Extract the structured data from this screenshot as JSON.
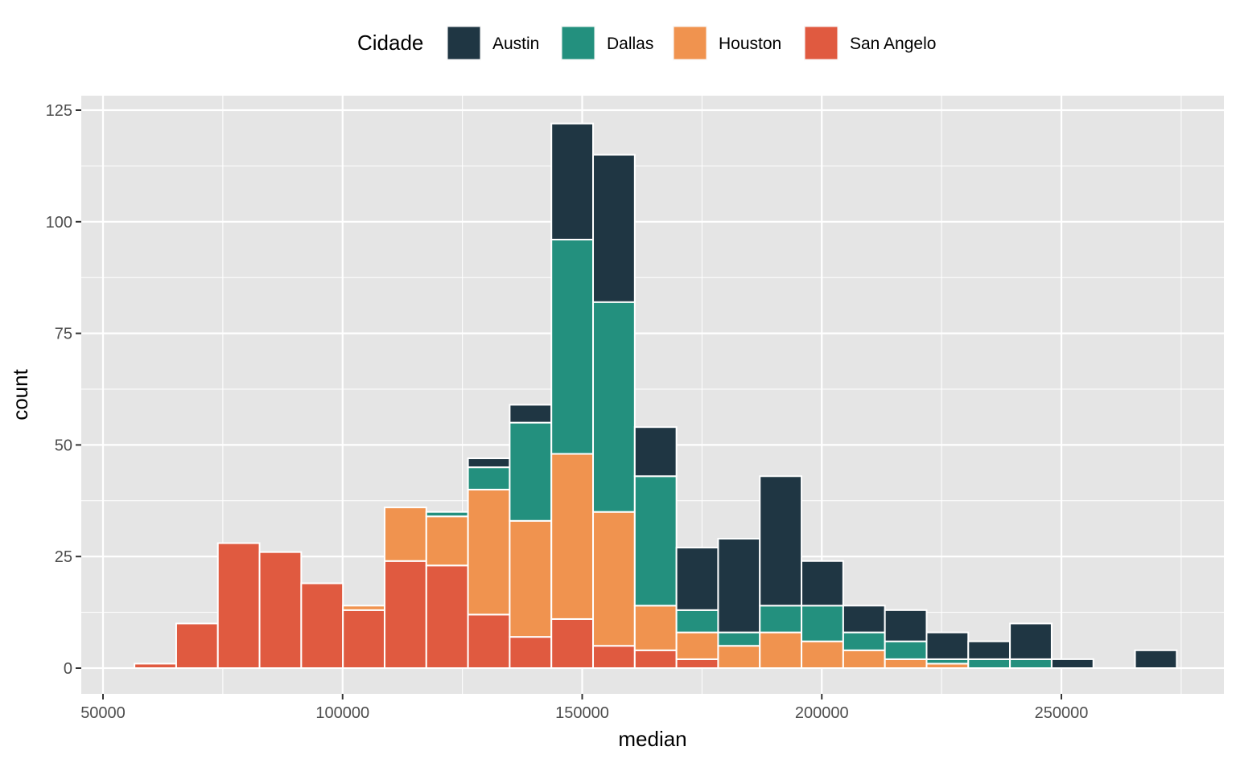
{
  "chart_data": {
    "type": "bar",
    "stacked": true,
    "xlabel": "median",
    "ylabel": "count",
    "xlim": [
      45000,
      282000
    ],
    "ylim": [
      -5,
      128
    ],
    "x_ticks": [
      50000,
      100000,
      150000,
      200000,
      250000
    ],
    "x_tick_labels": [
      "50000",
      "100000",
      "150000",
      "200000",
      "250000"
    ],
    "y_ticks": [
      0,
      25,
      50,
      75,
      100,
      125
    ],
    "y_tick_labels": [
      "0",
      "25",
      "50",
      "75",
      "100",
      "125"
    ],
    "grid": true,
    "legend": {
      "title": "Cidade",
      "position": "top"
    },
    "bin_width": 8700,
    "bin_centers": [
      60920,
      69620,
      78320,
      87020,
      95720,
      104420,
      113120,
      121820,
      130520,
      139220,
      147920,
      156620,
      165320,
      174020,
      182720,
      191420,
      200120,
      208820,
      217520,
      226220,
      234920,
      243620,
      252320,
      261020,
      269720
    ],
    "series": [
      {
        "name": "San Angelo",
        "color": "#E05A40",
        "values": [
          1,
          10,
          28,
          26,
          19,
          13,
          24,
          23,
          12,
          7,
          11,
          5,
          4,
          2,
          0,
          0,
          0,
          0,
          0,
          0,
          0,
          0,
          0,
          0,
          0
        ]
      },
      {
        "name": "Houston",
        "color": "#F0934F",
        "values": [
          0,
          0,
          0,
          0,
          0,
          1,
          12,
          11,
          28,
          26,
          37,
          30,
          10,
          6,
          5,
          8,
          6,
          4,
          2,
          1,
          0,
          0,
          0,
          0,
          0
        ]
      },
      {
        "name": "Dallas",
        "color": "#23907E",
        "values": [
          0,
          0,
          0,
          0,
          0,
          0,
          0,
          1,
          5,
          22,
          48,
          47,
          29,
          5,
          3,
          6,
          8,
          4,
          4,
          1,
          2,
          2,
          0,
          0,
          0
        ]
      },
      {
        "name": "Austin",
        "color": "#1F3643",
        "values": [
          0,
          0,
          0,
          0,
          0,
          0,
          0,
          0,
          2,
          4,
          26,
          33,
          11,
          14,
          21,
          29,
          10,
          6,
          7,
          6,
          4,
          8,
          2,
          0,
          4
        ]
      }
    ],
    "legend_order": [
      "Austin",
      "Dallas",
      "Houston",
      "San Angelo"
    ]
  }
}
